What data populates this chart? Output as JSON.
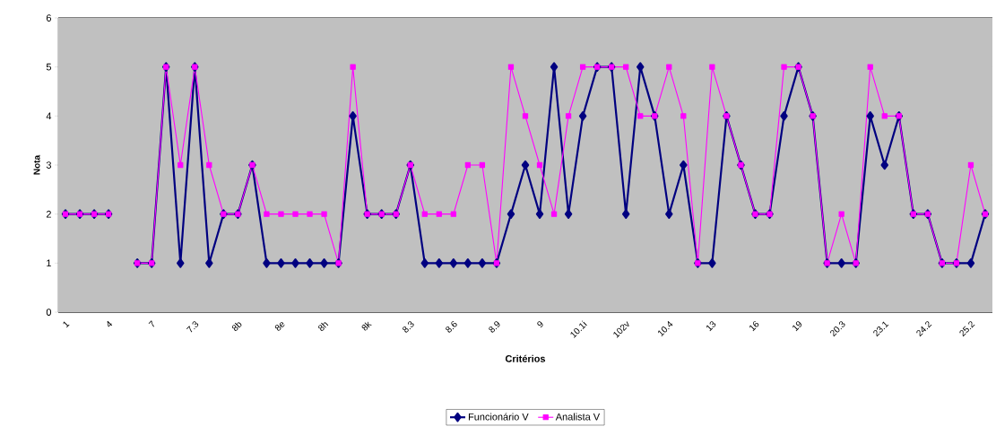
{
  "chart_data": {
    "type": "line",
    "xlabel": "Critérios",
    "ylabel": "Nota",
    "categories": [
      "1",
      null,
      null,
      "4",
      null,
      null,
      "7",
      null,
      null,
      "7.3",
      null,
      null,
      "8b",
      null,
      null,
      "8e",
      null,
      null,
      "8h",
      null,
      null,
      "8k",
      null,
      null,
      "8.3",
      null,
      null,
      "8.6",
      null,
      null,
      "8.9",
      null,
      null,
      "9",
      null,
      null,
      "10.1i",
      null,
      null,
      "102v",
      null,
      null,
      "10.4",
      null,
      null,
      "13",
      null,
      null,
      "16",
      null,
      null,
      "19",
      null,
      null,
      "20.3",
      null,
      null,
      "23.1",
      null,
      null,
      "24.2",
      null,
      null,
      "25.2",
      null
    ],
    "series": [
      {
        "name": "Funcionário V",
        "color": "#000080",
        "marker": "diamond",
        "values": [
          2,
          2,
          2,
          2,
          null,
          1,
          1,
          5,
          1,
          5,
          1,
          2,
          2,
          3,
          1,
          1,
          1,
          1,
          1,
          1,
          4,
          2,
          2,
          2,
          3,
          1,
          1,
          1,
          1,
          1,
          1,
          2,
          3,
          2,
          5,
          2,
          4,
          5,
          5,
          2,
          5,
          4,
          2,
          3,
          1,
          1,
          4,
          3,
          2,
          2,
          4,
          5,
          4,
          1,
          1,
          1,
          4,
          3,
          4,
          2,
          2,
          1,
          1,
          1,
          2
        ]
      },
      {
        "name": "Analista V",
        "color": "#ff00ff",
        "marker": "square",
        "values": [
          2,
          2,
          2,
          2,
          null,
          1,
          1,
          5,
          3,
          5,
          3,
          2,
          2,
          3,
          2,
          2,
          2,
          2,
          2,
          1,
          5,
          2,
          2,
          2,
          3,
          2,
          2,
          2,
          3,
          3,
          1,
          5,
          4,
          3,
          2,
          4,
          5,
          5,
          5,
          5,
          4,
          4,
          5,
          4,
          1,
          5,
          4,
          3,
          2,
          2,
          5,
          5,
          4,
          1,
          2,
          1,
          5,
          4,
          4,
          2,
          2,
          1,
          1,
          3,
          2
        ]
      }
    ],
    "ylim": [
      0,
      6
    ],
    "yticks": [
      0,
      1,
      2,
      3,
      4,
      5,
      6
    ],
    "grid": "y",
    "legend": "bottom",
    "line_style": "solid"
  }
}
